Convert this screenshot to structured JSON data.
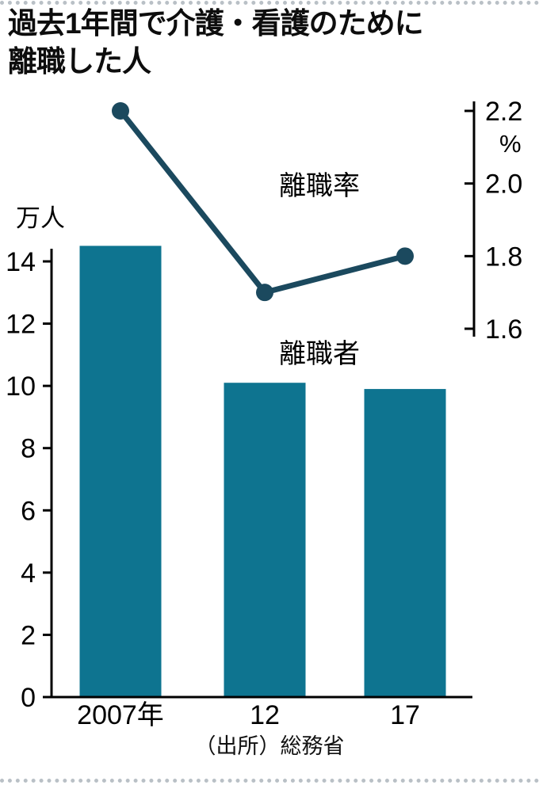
{
  "title": {
    "line1": "過去1年間で介護・看護のために",
    "line2": "離職した人"
  },
  "colors": {
    "bar": "#0E7490",
    "line": "#1B495E",
    "axis": "#000000",
    "text": "#000000"
  },
  "chart_data": {
    "type": "bar+line",
    "title": "過去1年間で介護・看護のために離職した人",
    "categories": [
      "2007年",
      "12",
      "17"
    ],
    "series": [
      {
        "name": "離職者",
        "type": "bar",
        "axis": "left",
        "unit": "万人",
        "values": [
          14.5,
          10.1,
          9.9
        ]
      },
      {
        "name": "離職率",
        "type": "line",
        "axis": "right",
        "unit": "%",
        "values": [
          2.2,
          1.7,
          1.8
        ]
      }
    ],
    "left_axis": {
      "unit_label": "万人",
      "min": 0,
      "max": 14,
      "ticks": [
        0,
        2,
        4,
        6,
        8,
        10,
        12,
        14
      ]
    },
    "right_axis": {
      "unit_label": "%",
      "min": 1.6,
      "max": 2.2,
      "ticks": [
        "1.6",
        "1.8",
        "2.0",
        "2.2"
      ]
    },
    "source": "（出所）総務省",
    "grid": false,
    "legend_position": "inline-annotations"
  }
}
